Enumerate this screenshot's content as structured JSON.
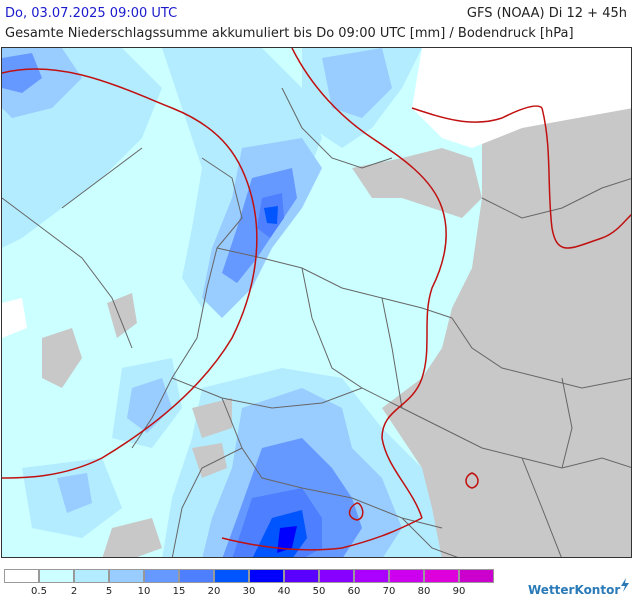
{
  "header": {
    "date": "Do, 03.07.2025 09:00 UTC",
    "model": "GFS (NOAA) Di 12 + 45h",
    "title": "Gesamte Niederschlagssumme akkumuliert bis Do 09:00 UTC [mm] / Bodendruck [hPa]"
  },
  "legend": {
    "colors": [
      "#ffffff",
      "#ccffff",
      "#b3ecff",
      "#99ccff",
      "#6699ff",
      "#4d7fff",
      "#0055ff",
      "#0000ff",
      "#5a00ff",
      "#8800ff",
      "#aa00ff",
      "#cc00ee",
      "#dd00dd",
      "#cc00cc"
    ],
    "ticks": [
      "0.5",
      "2",
      "5",
      "10",
      "15",
      "20",
      "30",
      "40",
      "50",
      "60",
      "70",
      "80",
      "90"
    ]
  },
  "brand": {
    "name": "WetterKontor"
  },
  "colors": {
    "land_grey": "#c8c8c8",
    "isobar": "#c01010",
    "border": "#666666"
  }
}
